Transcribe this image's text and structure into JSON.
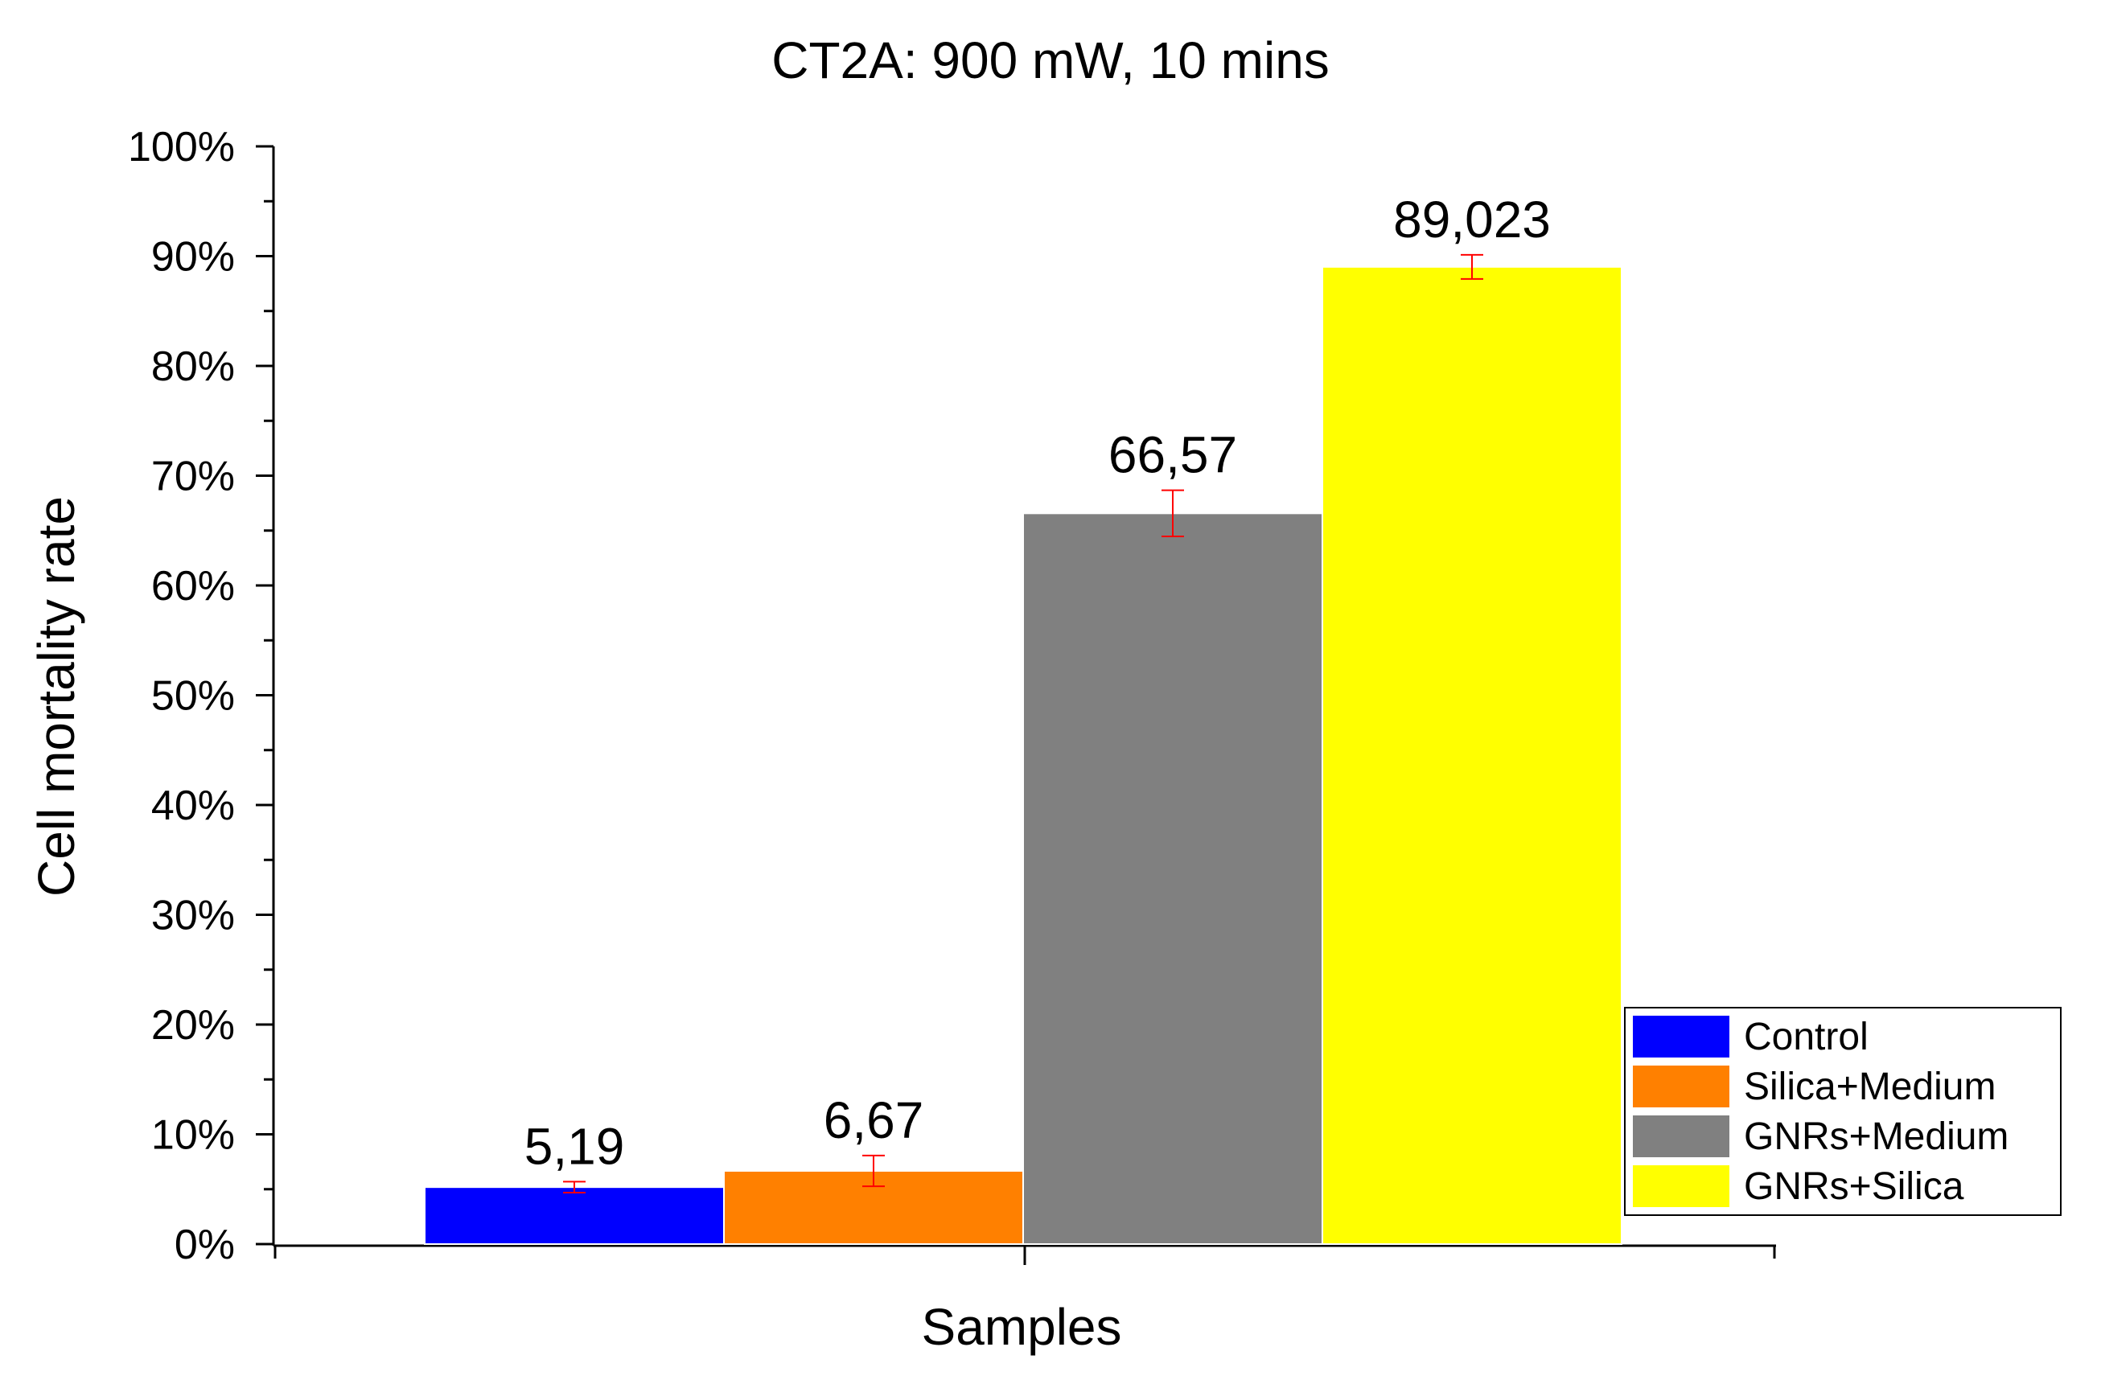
{
  "chart_data": {
    "type": "bar",
    "title": "CT2A: 900 mW, 10 mins",
    "xlabel": "Samples",
    "ylabel": "Cell mortality rate",
    "ylim": [
      0,
      100
    ],
    "y_tick_step": 10,
    "y_tick_labels": [
      "0%",
      "10%",
      "20%",
      "30%",
      "40%",
      "50%",
      "60%",
      "70%",
      "80%",
      "90%",
      "100%"
    ],
    "legend_position": "bottom-right",
    "series": [
      {
        "name": "Control",
        "value": 5.19,
        "label": "5,19",
        "error": 0.5,
        "color": "#0000ff"
      },
      {
        "name": "Silica+Medium",
        "value": 6.67,
        "label": "6,67",
        "error": 1.4,
        "color": "#ff8000"
      },
      {
        "name": "GNRs+Medium",
        "value": 66.57,
        "label": "66,57",
        "error": 2.1,
        "color": "#808080"
      },
      {
        "name": "GNRs+Silica",
        "value": 89.023,
        "label": "89,023",
        "error": 1.1,
        "color": "#ffff00"
      }
    ],
    "error_bar_color": "#ff0000"
  }
}
